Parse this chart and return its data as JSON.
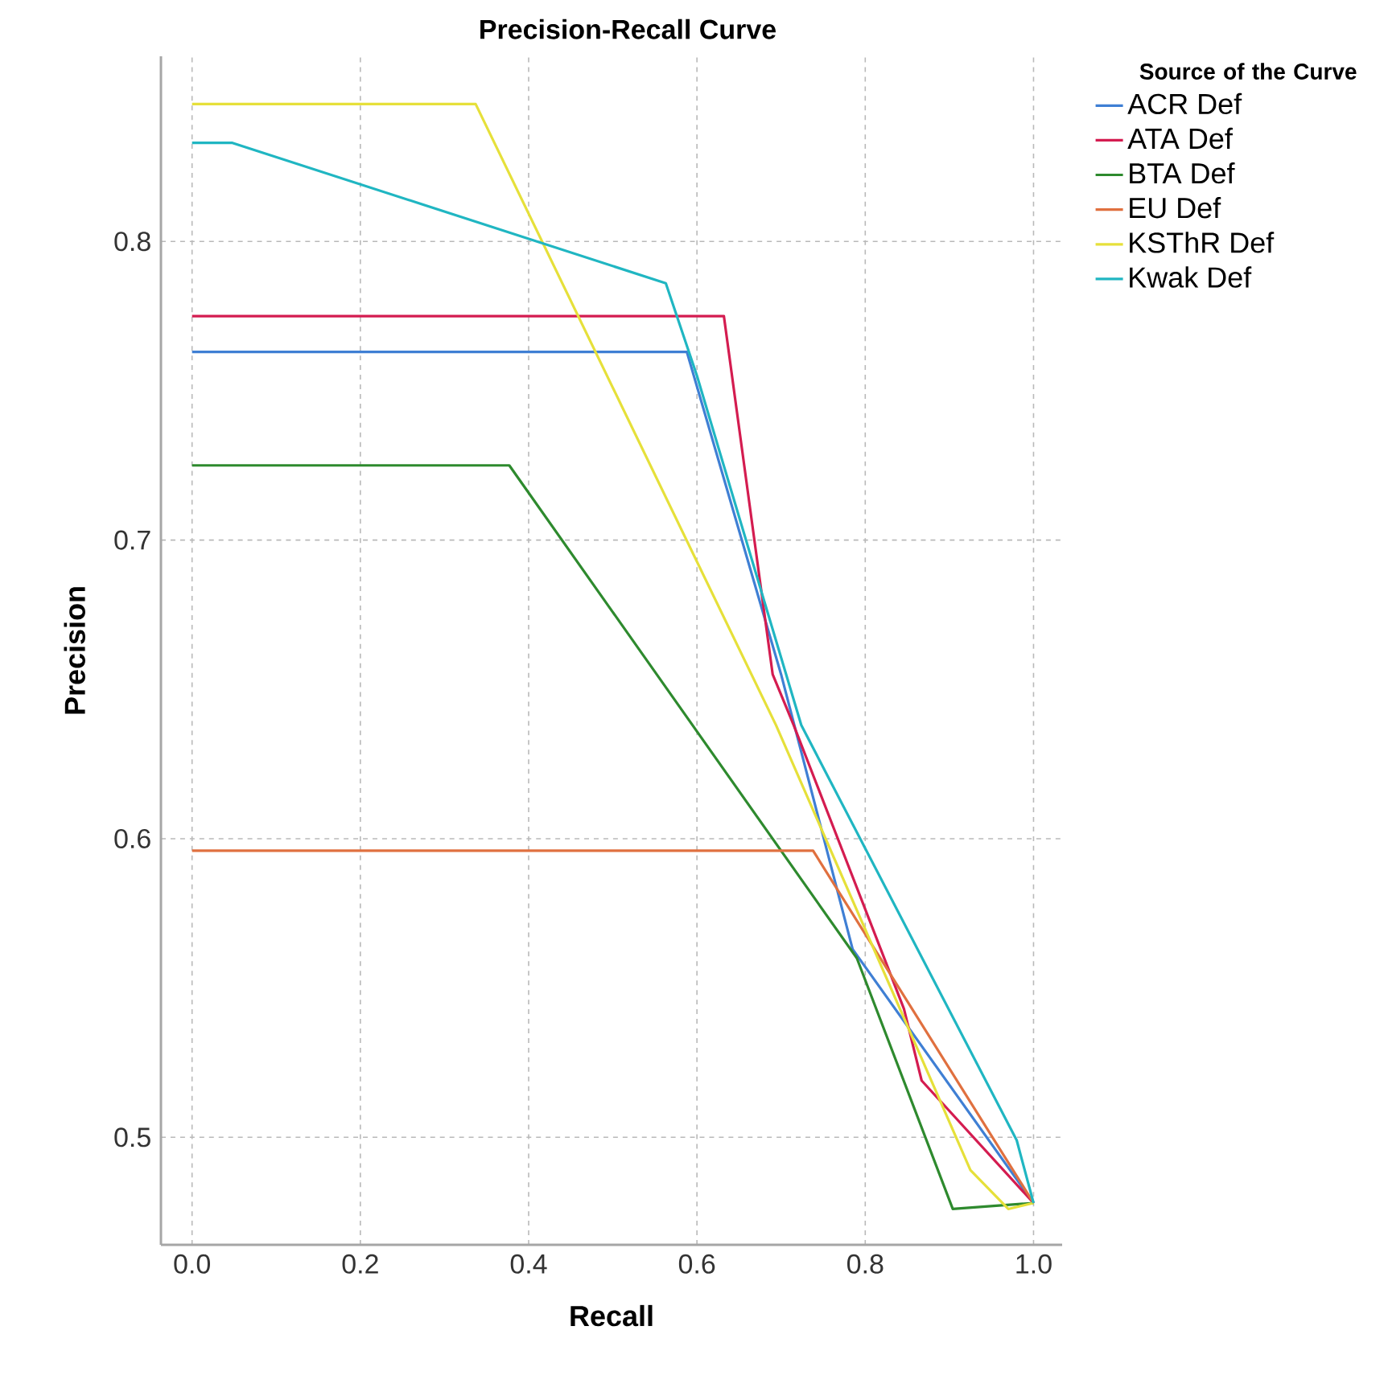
{
  "chart_data": {
    "type": "line",
    "title": "Precision-Recall Curve",
    "xlabel": "Recall",
    "ylabel": "Precision",
    "legend_title": "Source of the Curve",
    "xlim": [
      -0.037,
      1.034
    ],
    "ylim": [
      0.464,
      0.862
    ],
    "xticks": [
      {
        "value": 0,
        "label": "0.0"
      },
      0.2,
      0.4,
      0.6,
      0.8,
      {
        "value": 1,
        "label": "1.0"
      }
    ],
    "yticks": [
      0.5,
      0.6,
      0.7,
      0.8
    ],
    "grid": true,
    "legend": "right",
    "marker": "none",
    "line_style": "solid",
    "series": [
      {
        "name": "ACR Def",
        "color": "#3f7fd4",
        "x": [
          0,
          0.588,
          0.7,
          0.785,
          1.0
        ],
        "values": [
          0.763,
          0.763,
          0.655,
          0.563,
          0.478
        ]
      },
      {
        "name": "ATA Def",
        "color": "#d41c50",
        "x": [
          0,
          0.632,
          0.69,
          0.715,
          0.846,
          0.867,
          1.0
        ],
        "values": [
          0.775,
          0.775,
          0.655,
          0.638,
          0.543,
          0.519,
          0.478
        ]
      },
      {
        "name": "BTA Def",
        "color": "#2e8a2e",
        "x": [
          0,
          0.377,
          0.79,
          0.904,
          1.0
        ],
        "values": [
          0.725,
          0.725,
          0.56,
          0.476,
          0.478
        ]
      },
      {
        "name": "EU Def",
        "color": "#e0703f",
        "x": [
          0,
          0.738,
          1.0
        ],
        "values": [
          0.596,
          0.596,
          0.478
        ]
      },
      {
        "name": "KSThR Def",
        "color": "#e6e03a",
        "x": [
          0,
          0.337,
          0.694,
          0.925,
          0.97,
          1.0
        ],
        "values": [
          0.846,
          0.846,
          0.638,
          0.489,
          0.476,
          0.478
        ]
      },
      {
        "name": "Kwak Def",
        "color": "#20b6c2",
        "x": [
          0,
          0.048,
          0.563,
          0.6,
          0.724,
          0.98,
          1.0
        ],
        "values": [
          0.833,
          0.833,
          0.786,
          0.755,
          0.638,
          0.499,
          0.478
        ]
      }
    ]
  }
}
